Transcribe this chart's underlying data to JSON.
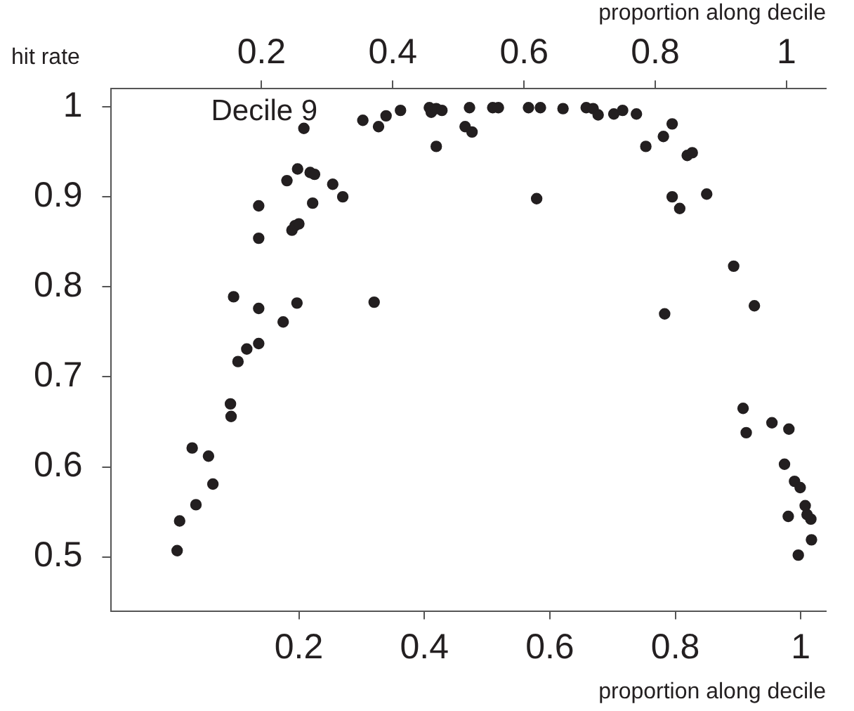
{
  "chart_data": {
    "type": "scatter",
    "xlabel": "proportion along decile",
    "x2label": "proportion along decile",
    "ylabel": "hit rate",
    "annotations": [
      "Decile 9"
    ],
    "xlim": [
      -0.1,
      1.04
    ],
    "xticks": [
      0.2,
      0.4,
      0.6,
      0.8,
      1
    ],
    "x2lim": [
      -0.03,
      1.06
    ],
    "x2ticks": [
      0.2,
      0.4,
      0.6,
      0.8,
      1
    ],
    "ylim": [
      0.44,
      1.02
    ],
    "yticks": [
      0.5,
      0.6,
      0.7,
      0.8,
      0.9,
      1
    ],
    "grid": false,
    "legend": false,
    "marker": "circle",
    "series": [
      {
        "color": "#231f20",
        "x": [
          0.006,
          0.01,
          0.03,
          0.036,
          0.056,
          0.063,
          0.091,
          0.092,
          0.096,
          0.103,
          0.117,
          0.136,
          0.136,
          0.136,
          0.136,
          0.175,
          0.197,
          0.189,
          0.194,
          0.2,
          0.181,
          0.198,
          0.218,
          0.225,
          0.222,
          0.254,
          0.27,
          0.208,
          0.302,
          0.327,
          0.339,
          0.362,
          0.32,
          0.408,
          0.411,
          0.419,
          0.428,
          0.419,
          0.472,
          0.465,
          0.476,
          0.509,
          0.518,
          0.566,
          0.585,
          0.621,
          0.658,
          0.669,
          0.677,
          0.702,
          0.716,
          0.738,
          0.795,
          0.781,
          0.753,
          0.819,
          0.827,
          0.579,
          0.795,
          0.807,
          0.85,
          0.783,
          0.893,
          0.926,
          0.908,
          0.913,
          0.954,
          0.981,
          0.974,
          0.99,
          0.999,
          1.007,
          1.016,
          1.01,
          0.98,
          1.017,
          0.996
        ],
        "values": [
          0.507,
          0.54,
          0.621,
          0.558,
          0.612,
          0.581,
          0.67,
          0.656,
          0.789,
          0.717,
          0.731,
          0.737,
          0.776,
          0.854,
          0.89,
          0.761,
          0.782,
          0.863,
          0.868,
          0.87,
          0.918,
          0.931,
          0.927,
          0.925,
          0.893,
          0.914,
          0.9,
          0.976,
          0.985,
          0.978,
          0.99,
          0.996,
          0.783,
          0.999,
          0.994,
          0.998,
          0.996,
          0.956,
          0.999,
          0.978,
          0.972,
          0.999,
          0.999,
          0.999,
          0.999,
          0.998,
          0.999,
          0.998,
          0.991,
          0.992,
          0.996,
          0.992,
          0.981,
          0.967,
          0.956,
          0.946,
          0.949,
          0.898,
          0.9,
          0.887,
          0.903,
          0.77,
          0.823,
          0.779,
          0.665,
          0.638,
          0.649,
          0.642,
          0.603,
          0.584,
          0.577,
          0.557,
          0.542,
          0.547,
          0.545,
          0.519,
          0.502
        ]
      }
    ]
  }
}
